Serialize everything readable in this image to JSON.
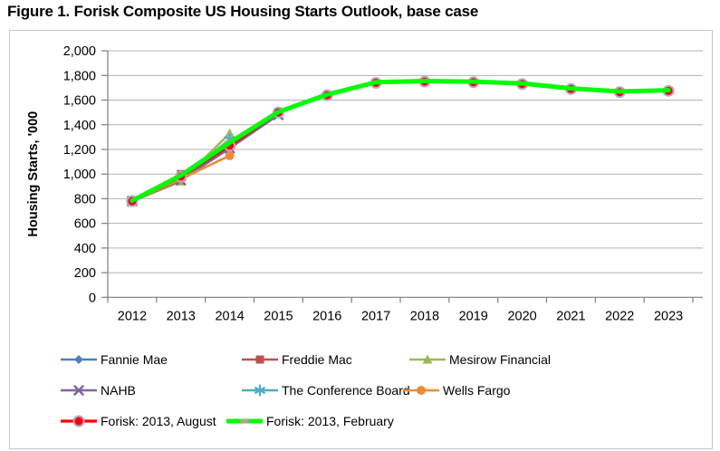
{
  "page": {
    "title": "Figure 1. Forisk Composite US Housing Starts Outlook, base case"
  },
  "chart_data": {
    "type": "line",
    "title": "Figure 1. Forisk Composite US Housing Starts Outlook, base case",
    "xlabel": "",
    "ylabel": "Housing Starts, '000",
    "ylim": [
      0,
      2000
    ],
    "ytick_step": 200,
    "ytick_labels": [
      "0",
      "200",
      "400",
      "600",
      "800",
      "1,000",
      "1,200",
      "1,400",
      "1,600",
      "1,800",
      "2,000"
    ],
    "categories": [
      "2012",
      "2013",
      "2014",
      "2015",
      "2016",
      "2017",
      "2018",
      "2019",
      "2020",
      "2021",
      "2022",
      "2023"
    ],
    "grid": true,
    "legend_position": "bottom",
    "series": [
      {
        "name": "Fannie Mae",
        "color": "#4F81BD",
        "marker": "diamond",
        "values": [
          780,
          960,
          1210,
          null,
          null,
          null,
          null,
          null,
          null,
          null,
          null,
          null
        ]
      },
      {
        "name": "Freddie Mac",
        "color": "#C0504D",
        "marker": "square",
        "values": [
          785,
          1000,
          1220,
          null,
          null,
          null,
          null,
          null,
          null,
          null,
          null,
          null
        ]
      },
      {
        "name": "Mesirow Financial",
        "color": "#9BBB59",
        "marker": "triangle",
        "values": [
          780,
          940,
          1330,
          null,
          null,
          null,
          null,
          null,
          null,
          null,
          null,
          null
        ]
      },
      {
        "name": "NAHB",
        "color": "#8064A2",
        "marker": "x",
        "values": [
          780,
          950,
          1210,
          1480,
          null,
          null,
          null,
          null,
          null,
          null,
          null,
          null
        ]
      },
      {
        "name": "The Conference Board",
        "color": "#4BACC6",
        "marker": "asterisk",
        "values": [
          780,
          970,
          1280,
          null,
          null,
          null,
          null,
          null,
          null,
          null,
          null,
          null
        ]
      },
      {
        "name": "Wells Fargo",
        "color": "#ED8C35",
        "marker": "circle",
        "values": [
          780,
          960,
          1150,
          null,
          null,
          null,
          null,
          null,
          null,
          null,
          null,
          null
        ]
      },
      {
        "name": "Forisk: 2013, August",
        "color": "#FF0000",
        "marker": "dot-ring",
        "marker_stroke": "#B5A6CD",
        "line_width": 3.2,
        "values": [
          780,
          980,
          1230,
          1500,
          1640,
          1740,
          1750,
          1745,
          1730,
          1690,
          1665,
          1675
        ]
      },
      {
        "name": "Forisk: 2013, February",
        "color": "#00FF00",
        "marker": "dash",
        "marker_color": "#C49A9A",
        "line_width": 5,
        "values": [
          785,
          990,
          1255,
          1505,
          1645,
          1745,
          1755,
          1750,
          1735,
          1695,
          1670,
          1680
        ]
      }
    ]
  }
}
